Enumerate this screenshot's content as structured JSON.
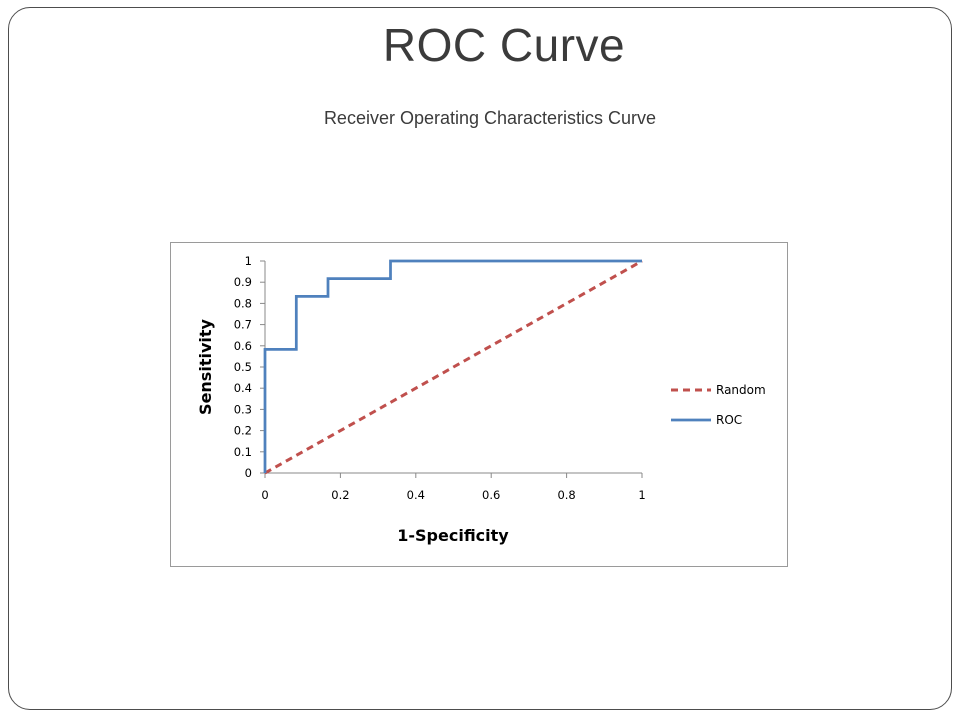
{
  "slide": {
    "title": "ROC Curve",
    "subtitle": "Receiver Operating Characteristics Curve"
  },
  "chart_data": {
    "type": "line",
    "title": "",
    "xlabel": "1-Specificity",
    "ylabel": "Sensitivity",
    "xlim": [
      0,
      1
    ],
    "ylim": [
      0,
      1
    ],
    "x_ticks": [
      "0",
      "0.2",
      "0.4",
      "0.6",
      "0.8",
      "1"
    ],
    "y_ticks": [
      "0",
      "0.1",
      "0.2",
      "0.3",
      "0.4",
      "0.5",
      "0.6",
      "0.7",
      "0.8",
      "0.9",
      "1"
    ],
    "grid": false,
    "legend_position": "right",
    "series": [
      {
        "name": "Random",
        "color": "#c0504d",
        "style": "dashed",
        "x": [
          0,
          1
        ],
        "y": [
          0,
          1
        ]
      },
      {
        "name": "ROC",
        "color": "#4f81bd",
        "style": "solid",
        "x": [
          0,
          0,
          0.083,
          0.083,
          0.167,
          0.167,
          0.333,
          0.333,
          1
        ],
        "y": [
          0,
          0.583,
          0.583,
          0.833,
          0.833,
          0.917,
          0.917,
          1,
          1
        ]
      }
    ]
  }
}
